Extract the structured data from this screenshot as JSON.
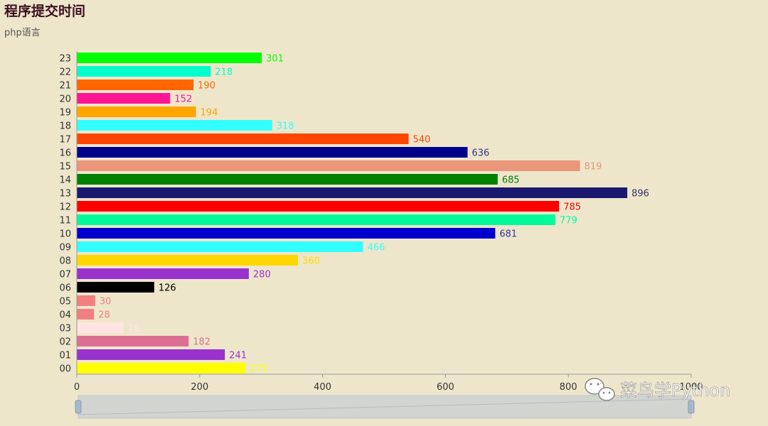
{
  "chart_data": {
    "type": "bar",
    "orientation": "horizontal",
    "title": "程序提交时间",
    "subtitle": "php语言",
    "xlim": [
      0,
      1000
    ],
    "x_ticks": [
      "0",
      "200",
      "400",
      "600",
      "800",
      "1000"
    ],
    "categories": [
      "00",
      "01",
      "02",
      "03",
      "04",
      "05",
      "06",
      "07",
      "08",
      "09",
      "10",
      "11",
      "12",
      "13",
      "14",
      "15",
      "16",
      "17",
      "18",
      "19",
      "20",
      "21",
      "22",
      "23"
    ],
    "values": [
      275,
      241,
      182,
      76,
      28,
      30,
      126,
      280,
      360,
      466,
      681,
      779,
      785,
      896,
      685,
      819,
      636,
      540,
      318,
      194,
      152,
      190,
      218,
      301
    ],
    "colors": [
      "#FFFF00",
      "#9932CC",
      "#DB7093",
      "#FFE4E1",
      "#F08080",
      "#F08080",
      "#000000",
      "#9932CC",
      "#FFD700",
      "#33FFFF",
      "#0000CD",
      "#00FA9A",
      "#FF0000",
      "#191970",
      "#008000",
      "#E9967A",
      "#00008B",
      "#FF4500",
      "#33FFFF",
      "#FFA500",
      "#FF1493",
      "#FF6600",
      "#00FFCC",
      "#00FF00"
    ],
    "label_colors": [
      "#FFFF00",
      "#9932CC",
      "#DB7093",
      "#FFE4E1",
      "#F08080",
      "#F08080",
      "#000000",
      "#9932CC",
      "#FFD700",
      "#33FFFF",
      "#3333AA",
      "#00FA9A",
      "#FF0000",
      "#333366",
      "#008000",
      "#E9967A",
      "#333388",
      "#FF4500",
      "#33FFFF",
      "#FFA500",
      "#FF1493",
      "#FF6600",
      "#00FFCC",
      "#00FF00"
    ]
  },
  "watermark": {
    "text": "菜鸟学Python",
    "icon": "wechat-icon"
  }
}
